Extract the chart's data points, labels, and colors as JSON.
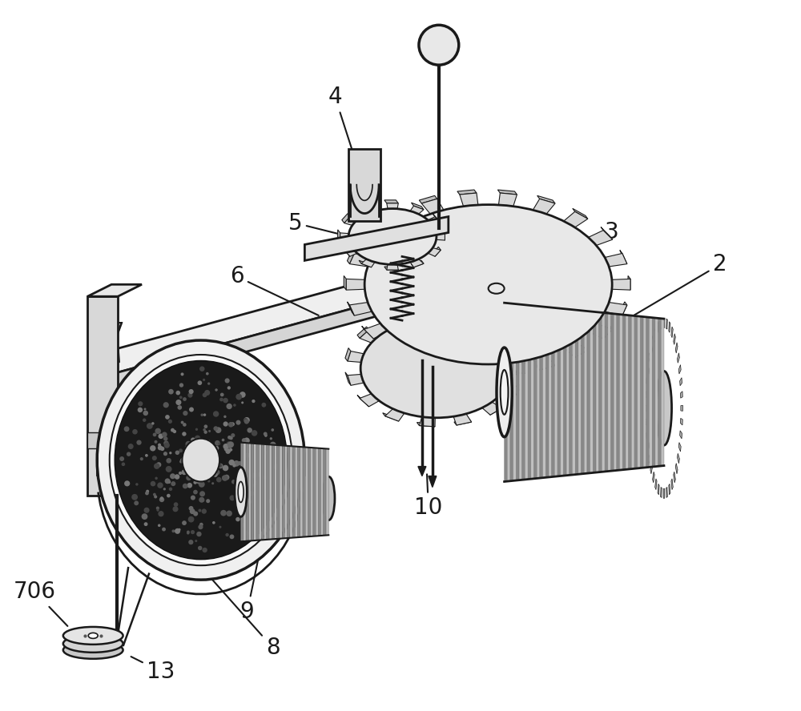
{
  "background_color": "#ffffff",
  "figure_width": 10.0,
  "figure_height": 8.88,
  "dpi": 100,
  "label_fontsize": 20,
  "label_color": "#1a1a1a",
  "line_color": "#1a1a1a"
}
